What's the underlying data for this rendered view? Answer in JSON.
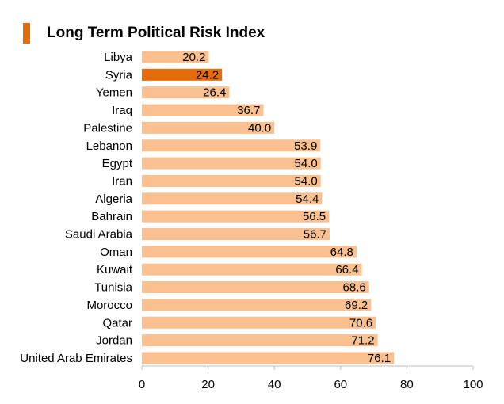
{
  "chart_data": {
    "type": "bar",
    "orientation": "horizontal",
    "title": "Long Term Political Risk Index",
    "xlabel": "",
    "ylabel": "",
    "xlim": [
      0,
      100
    ],
    "x_ticks": [
      "0",
      "20",
      "40",
      "60",
      "80",
      "100"
    ],
    "x_tick_values": [
      0,
      20,
      40,
      60,
      80,
      100
    ],
    "categories": [
      "Libya",
      "Syria",
      "Yemen",
      "Iraq",
      "Palestine",
      "Lebanon",
      "Egypt",
      "Iran",
      "Algeria",
      "Bahrain",
      "Saudi Arabia",
      "Oman",
      "Kuwait",
      "Tunisia",
      "Morocco",
      "Qatar",
      "Jordan",
      "United Arab Emirates"
    ],
    "values": [
      20.2,
      24.2,
      26.4,
      36.7,
      40.0,
      53.9,
      54.0,
      54.0,
      54.4,
      56.5,
      56.7,
      64.8,
      66.4,
      68.6,
      69.2,
      70.6,
      71.2,
      76.1
    ],
    "value_labels": [
      "20.2",
      "24.2",
      "26.4",
      "36.7",
      "40.0",
      "53.9",
      "54.0",
      "54.0",
      "54.4",
      "56.5",
      "56.7",
      "64.8",
      "66.4",
      "68.6",
      "69.2",
      "70.6",
      "71.2",
      "76.1"
    ],
    "highlight_category": "Syria",
    "grid": false,
    "legend": "none"
  },
  "colors": {
    "bar": "#fac090",
    "highlight": "#e46c0a",
    "accent": "#e46c0a",
    "axis": "#bfbfbf"
  }
}
